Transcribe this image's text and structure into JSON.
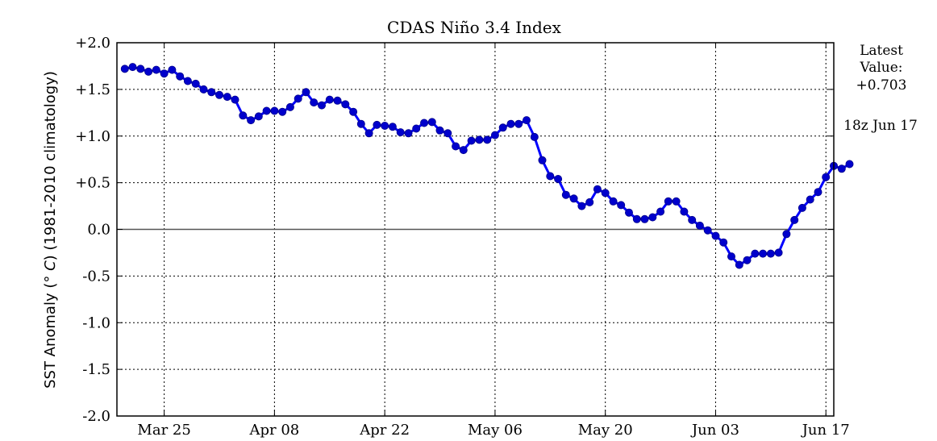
{
  "chart_data": {
    "type": "line",
    "title": "CDAS Niño 3.4 Index",
    "ylabel_prefix": "SST Anomaly (",
    "ylabel_unit": "° C",
    "ylabel_suffix": ") (1981-2010 climatology)",
    "ylim": [
      -2.0,
      2.0
    ],
    "yticks": [
      2.0,
      1.5,
      1.0,
      0.5,
      0.0,
      -0.5,
      -1.0,
      -1.5,
      -2.0
    ],
    "ytick_labels": [
      "+2.0",
      "+1.5",
      "+1.0",
      "+0.5",
      "0.0",
      "-0.5",
      "-1.0",
      "-1.5",
      "-2.0"
    ],
    "xlim": [
      "Mar 19",
      "Jun 18"
    ],
    "xticks": [
      "Mar 25",
      "Apr 08",
      "Apr 22",
      "May 06",
      "May 20",
      "Jun 03",
      "Jun 17"
    ],
    "grid": true,
    "zero_line": true,
    "line_color": "#0000ff",
    "marker_color": "#0000cc",
    "series": [
      {
        "start_date": "Mar 20",
        "step_days": 1,
        "values": [
          1.72,
          1.74,
          1.72,
          1.69,
          1.71,
          1.67,
          1.71,
          1.64,
          1.59,
          1.56,
          1.5,
          1.47,
          1.44,
          1.42,
          1.39,
          1.22,
          1.17,
          1.21,
          1.27,
          1.27,
          1.26,
          1.31,
          1.4,
          1.47,
          1.36,
          1.33,
          1.39,
          1.38,
          1.34,
          1.26,
          1.13,
          1.03,
          1.12,
          1.11,
          1.1,
          1.04,
          1.03,
          1.08,
          1.14,
          1.15,
          1.06,
          1.03,
          0.89,
          0.85,
          0.95,
          0.96,
          0.96,
          1.01,
          1.09,
          1.13,
          1.13,
          1.17,
          0.99,
          0.74,
          0.57,
          0.54,
          0.37,
          0.33,
          0.25,
          0.29,
          0.43,
          0.39,
          0.3,
          0.26,
          0.18,
          0.11,
          0.11,
          0.13,
          0.19,
          0.3,
          0.3,
          0.19,
          0.1,
          0.04,
          -0.01,
          -0.07,
          -0.14,
          -0.29,
          -0.38,
          -0.33,
          -0.26,
          -0.26,
          -0.26,
          -0.25,
          -0.05,
          0.1,
          0.23,
          0.32,
          0.4,
          0.56,
          0.68,
          0.65,
          0.7
        ]
      }
    ]
  },
  "side_panel": {
    "latest_line1": "Latest",
    "latest_line2": "Value:",
    "latest_value": "+0.703",
    "timestamp": "18z Jun 17"
  }
}
